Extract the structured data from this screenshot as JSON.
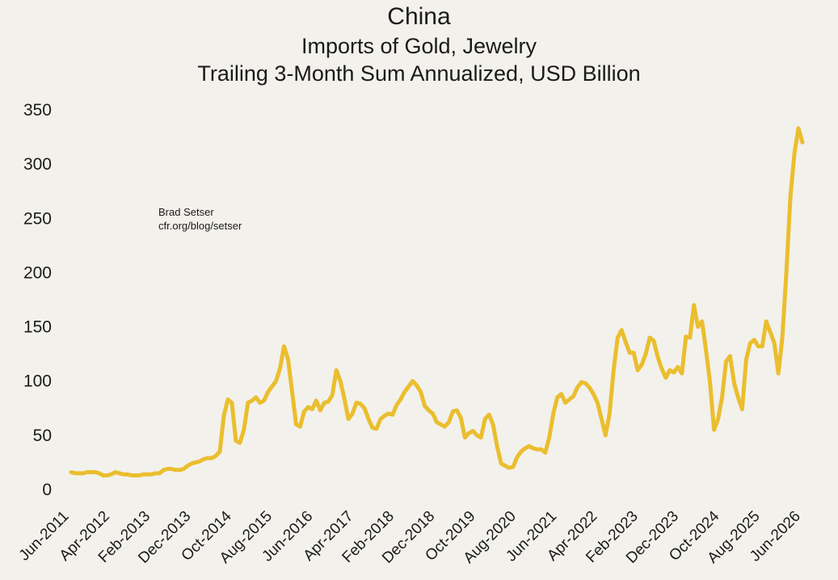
{
  "chart_data": {
    "type": "line",
    "title": "China",
    "subtitle_line1": "Imports of Gold, Jewelry",
    "subtitle_line2": "Trailing 3-Month Sum Annualized, USD Billion",
    "xlabel": "",
    "ylabel": "",
    "ylim": [
      0,
      350
    ],
    "yticks": [
      0,
      50,
      100,
      150,
      200,
      250,
      300,
      350
    ],
    "xticks": [
      "Jun-2011",
      "Apr-2012",
      "Feb-2013",
      "Dec-2013",
      "Oct-2014",
      "Aug-2015",
      "Jun-2016",
      "Apr-2017",
      "Feb-2018",
      "Dec-2018",
      "Oct-2019",
      "Aug-2020",
      "Jun-2021",
      "Apr-2022",
      "Feb-2023",
      "Dec-2023",
      "Oct-2024",
      "Aug-2025",
      "Jun-2026"
    ],
    "grid": false,
    "legend": "none",
    "x_start": "Jun-2011",
    "x_end": "Jul-2026",
    "series": [
      {
        "color": "#eabe2e",
        "values": [
          16,
          15,
          15,
          15,
          16,
          16,
          16,
          15,
          13,
          13,
          14,
          16,
          15,
          14,
          14,
          13,
          13,
          13,
          14,
          14,
          14,
          15,
          15,
          18,
          19,
          19,
          18,
          18,
          19,
          22,
          24,
          25,
          26,
          28,
          29,
          29,
          31,
          35,
          68,
          83,
          80,
          45,
          43,
          55,
          80,
          82,
          85,
          80,
          82,
          90,
          95,
          100,
          112,
          132,
          120,
          90,
          60,
          58,
          72,
          76,
          74,
          82,
          73,
          80,
          81,
          87,
          110,
          100,
          84,
          65,
          70,
          80,
          79,
          75,
          65,
          57,
          56,
          65,
          68,
          70,
          69,
          78,
          83,
          90,
          95,
          100,
          96,
          90,
          77,
          73,
          70,
          62,
          60,
          58,
          62,
          72,
          73,
          66,
          48,
          52,
          54,
          50,
          48,
          65,
          69,
          60,
          40,
          24,
          22,
          20,
          21,
          30,
          35,
          38,
          40,
          38,
          37,
          37,
          34,
          48,
          70,
          85,
          88,
          80,
          83,
          86,
          94,
          99,
          98,
          94,
          88,
          80,
          65,
          50,
          70,
          110,
          140,
          147,
          136,
          126,
          126,
          110,
          115,
          125,
          140,
          137,
          122,
          111,
          103,
          110,
          108,
          113,
          107,
          141,
          140,
          170,
          150,
          155,
          128,
          99,
          55,
          65,
          85,
          118,
          123,
          98,
          85,
          74,
          120,
          135,
          138,
          132,
          132,
          155,
          145,
          135,
          107,
          140,
          200,
          270,
          310,
          333,
          320
        ]
      }
    ],
    "annotation": [
      "Brad Setser",
      "cfr.org/blog/setser"
    ]
  }
}
